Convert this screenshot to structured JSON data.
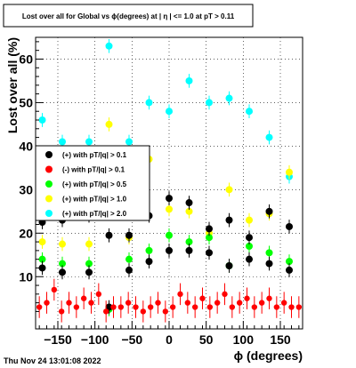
{
  "title": "Lost over all for Global vs ϕ(degrees) at | η | <= 1.0 at pT > 0.11",
  "timestamp": "Thu Nov 24 13:01:08 2022",
  "colors": {
    "black": "#000000",
    "red": "#ff0000",
    "green": "#00ff00",
    "yellow": "#ffff00",
    "cyan": "#00ffff"
  },
  "chart_data": {
    "type": "scatter",
    "xlabel": "ϕ (degrees)",
    "ylabel": "Lost over all (%)",
    "xlim": [
      -180,
      180
    ],
    "ylim": [
      -2,
      65
    ],
    "xticks": [
      -150,
      -100,
      -50,
      0,
      50,
      100,
      150
    ],
    "yticks": [
      10,
      20,
      30,
      40,
      50,
      60
    ],
    "xtick_labels": [
      "−150",
      "−100",
      "−50",
      "0",
      "50",
      "100",
      "150"
    ],
    "ytick_labels": [
      "10",
      "20",
      "30",
      "40",
      "50",
      "60"
    ],
    "grid": true,
    "legend_position": "left",
    "series": [
      {
        "name": "(+) with pT/|q| > 0.1",
        "color": "#000000",
        "x": [
          -171,
          -171,
          -144,
          -144,
          -108,
          -108,
          -81,
          -81,
          -54,
          -54,
          -27,
          -27,
          0,
          0,
          27,
          27,
          54,
          54,
          81,
          81,
          108,
          108,
          135,
          135,
          162,
          162
        ],
        "y": [
          22.5,
          12,
          23,
          11,
          24,
          11,
          19.5,
          3,
          19.5,
          11.5,
          24,
          13.5,
          28,
          16,
          27,
          16,
          21,
          15.5,
          23,
          12.5,
          19,
          14,
          25,
          13,
          21.5,
          11.5
        ]
      },
      {
        "name": "(-) with pT/|q| > 0.1",
        "color": "#ff0000",
        "x": [
          -175,
          -165,
          -155,
          -145,
          -135,
          -125,
          -115,
          -105,
          -95,
          -85,
          -75,
          -65,
          -55,
          -45,
          -35,
          -25,
          -15,
          -5,
          5,
          15,
          25,
          35,
          45,
          55,
          65,
          75,
          85,
          95,
          105,
          115,
          125,
          135,
          145,
          155,
          165,
          175
        ],
        "y": [
          3,
          4,
          7,
          2,
          4,
          3,
          5,
          4,
          6,
          2,
          3,
          3,
          4,
          3,
          2,
          3,
          4,
          2,
          3,
          6,
          4,
          3,
          5,
          3,
          4,
          6,
          3,
          4,
          5,
          3,
          4,
          5,
          3,
          4,
          3,
          3
        ]
      },
      {
        "name": "(+) with pT/|q| > 0.5",
        "color": "#00ff00",
        "x": [
          -171,
          -144,
          -108,
          -81,
          -54,
          -27,
          0,
          27,
          54,
          81,
          108,
          135,
          162
        ],
        "y": [
          14,
          13,
          13,
          2.5,
          14,
          16,
          19.5,
          18,
          19,
          12.5,
          17,
          15.5,
          13.5
        ]
      },
      {
        "name": "(+) with pT/|q| > 1.0",
        "color": "#ffff00",
        "x": [
          -171,
          -144,
          -108,
          -81,
          -54,
          -27,
          0,
          27,
          54,
          81,
          108,
          135,
          162
        ],
        "y": [
          18,
          17.5,
          17.5,
          45,
          19,
          37,
          25.5,
          25,
          20,
          30,
          23,
          24.5,
          34
        ]
      },
      {
        "name": "(+) with pT/|q| > 2.0",
        "color": "#00ffff",
        "x": [
          -171,
          -144,
          -108,
          -81,
          -54,
          -27,
          0,
          27,
          54,
          81,
          108,
          135,
          162
        ],
        "y": [
          46,
          41,
          41,
          63,
          41,
          50,
          48,
          55,
          50,
          51,
          48,
          42,
          33
        ]
      }
    ]
  }
}
